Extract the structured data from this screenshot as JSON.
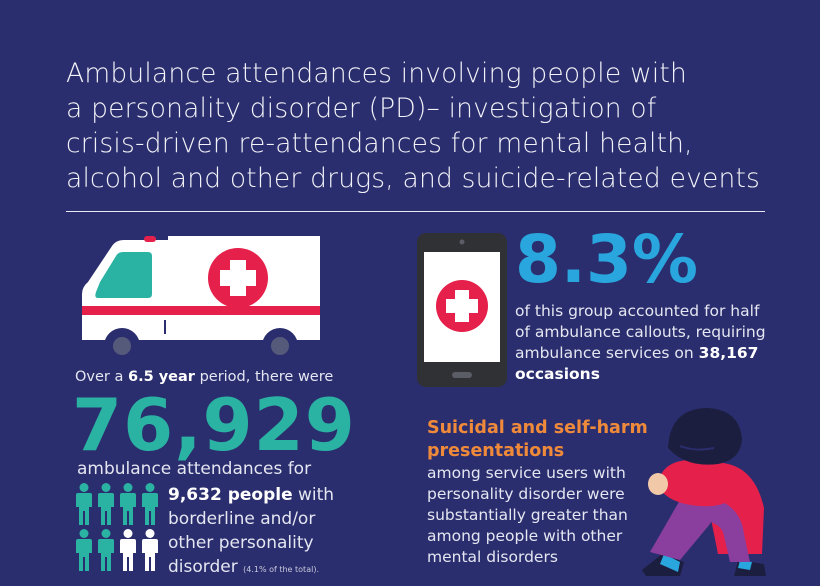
{
  "title": {
    "line1": "Ambulance attendances involving people with",
    "line2": "a personality disorder (PD)– investigation of",
    "line3": "crisis-driven re-attendances for mental health,",
    "line4": "alcohol and other drugs, and suicide-related events"
  },
  "left": {
    "over_prefix": "Over a",
    "over_bold": "6.5 year",
    "over_suffix": "period, there were",
    "big_number": "76,929",
    "attendances_text": "ambulance attendances for",
    "people_bold": "9,632 people",
    "people_rest": "with borderline and/or other personality disorder",
    "people_note": "(4.1% of the total).",
    "people_icons": {
      "total": 8,
      "highlighted": 6
    }
  },
  "right_top": {
    "percent": "8.3%",
    "text": "of this group accounted for half of ambulance callouts, requiring ambulance services on",
    "bold_end": "38,167 occasions"
  },
  "right_bottom": {
    "heading": "Suicidal and self-harm presentations",
    "text": "among service users with personality disorder were substantially greater than among people with other mental disorders"
  },
  "colors": {
    "background": "#2b2e6e",
    "teal": "#2ab3a3",
    "blue": "#29a6dd",
    "orange": "#f08a3b",
    "red": "#e5204b",
    "icons": [
      "ambulance-icon",
      "phone-icon",
      "medical-cross-icon",
      "person-icon",
      "sad-person-icon"
    ]
  }
}
